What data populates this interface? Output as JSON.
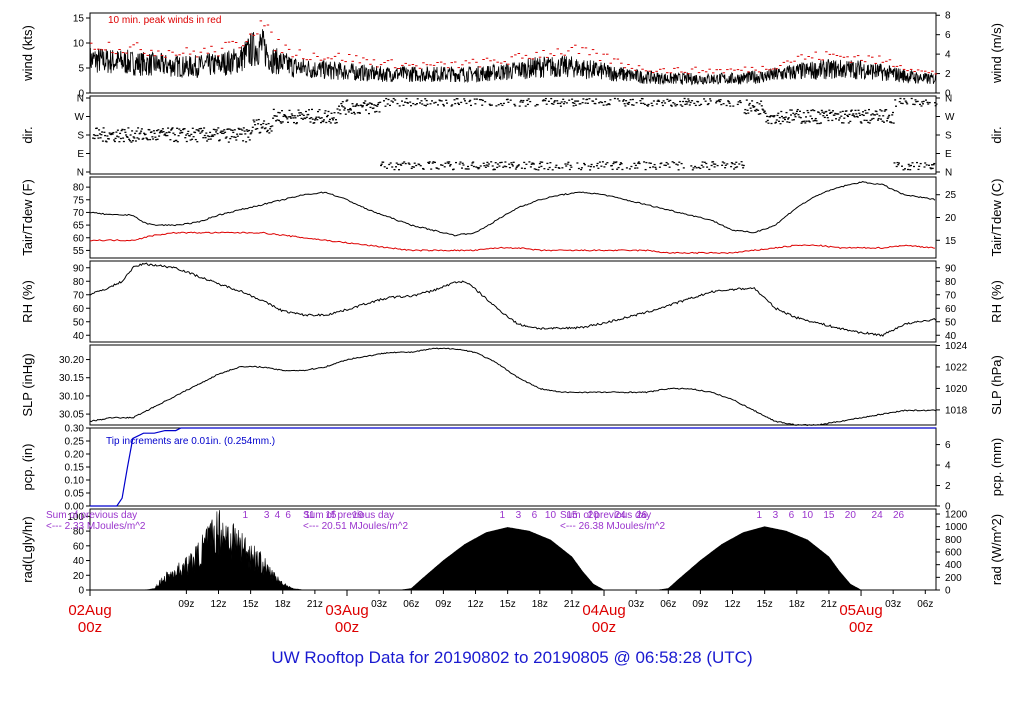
{
  "title": "UW Rooftop Data for 20190802  to  20190805 @ 06:58:28  (UTC)",
  "colors": {
    "primary": "#000000",
    "red": "#dd0000",
    "blue": "#0000cc",
    "purple": "#9933cc",
    "title": "#1a1ad0"
  },
  "x_axis": {
    "range_hours": [
      0,
      79
    ],
    "hour_ticks": [
      {
        "h": 9,
        "label": "09z"
      },
      {
        "h": 12,
        "label": "12z"
      },
      {
        "h": 15,
        "label": "15z"
      },
      {
        "h": 18,
        "label": "18z"
      },
      {
        "h": 21,
        "label": "21z"
      },
      {
        "h": 27,
        "label": "03z"
      },
      {
        "h": 30,
        "label": "06z"
      },
      {
        "h": 33,
        "label": "09z"
      },
      {
        "h": 36,
        "label": "12z"
      },
      {
        "h": 39,
        "label": "15z"
      },
      {
        "h": 42,
        "label": "18z"
      },
      {
        "h": 45,
        "label": "21z"
      },
      {
        "h": 51,
        "label": "03z"
      },
      {
        "h": 54,
        "label": "06z"
      },
      {
        "h": 57,
        "label": "09z"
      },
      {
        "h": 60,
        "label": "12z"
      },
      {
        "h": 63,
        "label": "15z"
      },
      {
        "h": 66,
        "label": "18z"
      },
      {
        "h": 69,
        "label": "21z"
      },
      {
        "h": 75,
        "label": "03z"
      },
      {
        "h": 78,
        "label": "06z"
      }
    ],
    "day_labels": [
      {
        "h": 0,
        "line1": "02Aug",
        "line2": "00z"
      },
      {
        "h": 24,
        "line1": "03Aug",
        "line2": "00z"
      },
      {
        "h": 48,
        "line1": "04Aug",
        "line2": "00z"
      },
      {
        "h": 72,
        "line1": "05Aug",
        "line2": "00z"
      }
    ]
  },
  "panels": {
    "wind": {
      "left_label": "wind (kts)",
      "right_label": "wind (m/s)",
      "left_ticks": [
        "0",
        "5",
        "10",
        "15"
      ],
      "right_ticks": [
        "0",
        "2",
        "4",
        "6",
        "8"
      ],
      "annotation": "10 min. peak winds in red",
      "ylim": [
        0,
        16
      ]
    },
    "dir": {
      "left_label": "dir.",
      "right_label": "dir.",
      "left_ticks": [
        "N",
        "E",
        "S",
        "W",
        "N"
      ],
      "right_ticks": [
        "N",
        "E",
        "S",
        "W",
        "N"
      ]
    },
    "temp": {
      "left_label": "Tair/Tdew (F)",
      "right_label": "Tair/Tdew (C)",
      "left_ticks": [
        "55",
        "60",
        "65",
        "70",
        "75",
        "80"
      ],
      "right_ticks": [
        "15",
        "20",
        "25"
      ],
      "ylim": [
        52,
        84
      ]
    },
    "rh": {
      "left_label": "RH (%)",
      "right_label": "RH (%)",
      "left_ticks": [
        "40",
        "50",
        "60",
        "70",
        "80",
        "90"
      ],
      "right_ticks": [
        "40",
        "50",
        "60",
        "70",
        "80",
        "90"
      ],
      "ylim": [
        35,
        95
      ]
    },
    "slp": {
      "left_label": "SLP (inHg)",
      "right_label": "SLP (hPa)",
      "left_ticks": [
        "30.05",
        "30.10",
        "30.15",
        "30.20"
      ],
      "right_ticks": [
        "1018",
        "1020",
        "1022",
        "1024"
      ],
      "ylim": [
        30.02,
        30.24
      ]
    },
    "pcp": {
      "left_label": "pcp. (in)",
      "right_label": "pcp. (mm)",
      "left_ticks": [
        "0.00",
        "0.05",
        "0.10",
        "0.15",
        "0.20",
        "0.25",
        "0.30"
      ],
      "right_ticks": [
        "0",
        "2",
        "4",
        "6"
      ],
      "annotation": "Tip increments are 0.01in. (0.254mm.)",
      "ylim": [
        0,
        0.3
      ]
    },
    "rad": {
      "left_label": "rad(Lgly/hr)",
      "right_label": "rad (W/m^2)",
      "left_ticks": [
        "0",
        "20",
        "40",
        "60",
        "80",
        "100"
      ],
      "right_ticks": [
        "0",
        "200",
        "400",
        "600",
        "800",
        "1000",
        "1200"
      ],
      "ylim": [
        0,
        110
      ],
      "sums": [
        {
          "h": 0,
          "line1": "Sum of previous day",
          "line2": "<--- 2.33 MJoules/m^2"
        },
        {
          "h": 24,
          "line1": "Sum of previous day",
          "line2": "<--- 20.51 MJoules/m^2"
        },
        {
          "h": 48,
          "line1": "Sum of previous day",
          "line2": "<--- 26.38 MJoules/m^2"
        }
      ],
      "hour_marks": [
        "1",
        "3",
        "4",
        "6",
        "11",
        "15",
        "19",
        "1",
        "3",
        "6",
        "10",
        "15",
        "20",
        "24",
        "26",
        "1",
        "3",
        "6",
        "10",
        "15",
        "20",
        "24",
        "26"
      ]
    }
  },
  "chart_data": [
    {
      "type": "line",
      "title": "10 min. peak winds in red",
      "ylabel": "wind (kts)",
      "ylabel_right": "wind (m/s)",
      "ylim": [
        0,
        16
      ],
      "x_units": "hours since 02Aug 00z",
      "series": [
        {
          "x": [
            0,
            3,
            6,
            9,
            12,
            14,
            15,
            16,
            17,
            19,
            21,
            24,
            27,
            30,
            33,
            36,
            39,
            42,
            45,
            48,
            51,
            54,
            57,
            60,
            63,
            66,
            69,
            72,
            75,
            78,
            79
          ],
          "values": [
            7,
            6.5,
            6,
            5.5,
            6,
            7,
            9,
            10,
            7,
            5.5,
            5,
            4.5,
            4,
            4,
            4,
            4,
            4.5,
            5.5,
            5.5,
            4.5,
            3.5,
            3,
            3,
            3,
            3.5,
            4.5,
            5,
            5,
            4,
            3,
            3
          ]
        },
        {
          "x": [
            0,
            3,
            6,
            9,
            12,
            14,
            15,
            16,
            17,
            19,
            21,
            24,
            27,
            30,
            33,
            36,
            39,
            42,
            45,
            48,
            51,
            54,
            57,
            60,
            63,
            66,
            69,
            72,
            75,
            78,
            79
          ],
          "values": [
            10,
            9,
            8.5,
            8,
            8.5,
            10,
            13,
            14,
            10,
            8,
            7.5,
            7,
            6,
            5.5,
            5.5,
            6,
            6.5,
            8,
            8.5,
            7,
            5,
            4.5,
            4.5,
            4.5,
            5,
            7,
            7.5,
            7,
            6,
            4,
            4
          ]
        }
      ]
    },
    {
      "type": "scatter",
      "ylabel": "dir.",
      "categories": [
        "N",
        "E",
        "S",
        "W",
        "N"
      ],
      "x_units": "hours since 02Aug 00z",
      "x": [
        0,
        2,
        4,
        6,
        8,
        10,
        12,
        14,
        16,
        18,
        20,
        22,
        24,
        26,
        28,
        30,
        32,
        34,
        36,
        38,
        40,
        42,
        44,
        46,
        48,
        50,
        52,
        54,
        56,
        58,
        60,
        62,
        64,
        66,
        68,
        70,
        72,
        74,
        76,
        78
      ],
      "values": [
        "S",
        "S",
        "S",
        "S",
        "S",
        "S",
        "S",
        "S",
        "SW",
        "W",
        "W",
        "W",
        "NW",
        "NW",
        "N",
        "N",
        "N",
        "N",
        "N",
        "N",
        "N",
        "N",
        "N",
        "N",
        "N",
        "N",
        "N",
        "N",
        "N",
        "N",
        "N",
        "NW",
        "W",
        "W",
        "W",
        "W",
        "W",
        "W",
        "N",
        "N"
      ]
    },
    {
      "type": "line",
      "ylabel": "Tair/Tdew (F)",
      "ylabel_right": "Tair/Tdew (C)",
      "ylim": [
        52,
        84
      ],
      "x_units": "hours since 02Aug 00z",
      "series": [
        {
          "x": [
            0,
            2,
            4,
            5,
            6,
            8,
            10,
            12,
            14,
            16,
            18,
            20,
            22,
            24,
            26,
            28,
            30,
            32,
            34,
            36,
            38,
            40,
            42,
            44,
            46,
            48,
            50,
            52,
            54,
            56,
            58,
            60,
            62,
            64,
            66,
            68,
            70,
            72,
            74,
            76,
            79
          ],
          "values": [
            70,
            69,
            69,
            66,
            65,
            65,
            66,
            69,
            71,
            73,
            75,
            77,
            78,
            75,
            71,
            68,
            65,
            63,
            61,
            62,
            67,
            72,
            75,
            77,
            78,
            77,
            75,
            73,
            71,
            69,
            67,
            63,
            62,
            65,
            72,
            77,
            80,
            82,
            81,
            77,
            75
          ]
        },
        {
          "x": [
            0,
            2,
            4,
            5,
            6,
            8,
            10,
            12,
            14,
            16,
            18,
            20,
            22,
            24,
            26,
            28,
            30,
            32,
            34,
            36,
            38,
            40,
            42,
            44,
            46,
            48,
            50,
            52,
            54,
            56,
            58,
            60,
            62,
            64,
            66,
            68,
            70,
            72,
            74,
            76,
            79
          ],
          "values": [
            59,
            59,
            59,
            60,
            61,
            62,
            62,
            62,
            62,
            62,
            61,
            60,
            59,
            58,
            57,
            56,
            55,
            55,
            55,
            55,
            56,
            56,
            55,
            55,
            55,
            55,
            55,
            55,
            54,
            54,
            54,
            54,
            55,
            56,
            57,
            57,
            56,
            56,
            56,
            57,
            56
          ]
        }
      ]
    },
    {
      "type": "line",
      "ylabel": "RH (%)",
      "ylabel_right": "RH (%)",
      "ylim": [
        35,
        95
      ],
      "x_units": "hours since 02Aug 00z",
      "series": [
        {
          "x": [
            0,
            2,
            3,
            4,
            5,
            6,
            8,
            10,
            12,
            14,
            16,
            18,
            20,
            22,
            24,
            26,
            28,
            30,
            32,
            34,
            35,
            36,
            38,
            40,
            42,
            44,
            46,
            48,
            50,
            52,
            54,
            56,
            58,
            60,
            62,
            64,
            66,
            68,
            70,
            72,
            74,
            76,
            79
          ],
          "values": [
            70,
            76,
            80,
            90,
            93,
            92,
            90,
            84,
            78,
            73,
            66,
            58,
            55,
            55,
            59,
            64,
            68,
            69,
            73,
            79,
            80,
            74,
            60,
            48,
            45,
            45,
            46,
            49,
            53,
            57,
            62,
            67,
            72,
            74,
            75,
            60,
            53,
            49,
            45,
            42,
            40,
            48,
            52
          ]
        }
      ]
    },
    {
      "type": "line",
      "ylabel": "SLP (inHg)",
      "ylabel_right": "SLP (hPa)",
      "ylim": [
        30.02,
        30.24
      ],
      "x_units": "hours since 02Aug 00z",
      "series": [
        {
          "x": [
            0,
            2,
            4,
            6,
            8,
            10,
            12,
            14,
            16,
            18,
            20,
            22,
            24,
            26,
            28,
            30,
            32,
            34,
            36,
            38,
            40,
            42,
            44,
            46,
            48,
            50,
            52,
            54,
            56,
            58,
            60,
            62,
            64,
            66,
            68,
            70,
            72,
            74,
            76,
            79
          ],
          "values": [
            30.03,
            30.04,
            30.04,
            30.07,
            30.1,
            30.13,
            30.16,
            30.18,
            30.18,
            30.17,
            30.17,
            30.18,
            30.2,
            30.21,
            30.22,
            30.22,
            30.23,
            30.23,
            30.22,
            30.19,
            30.15,
            30.12,
            30.11,
            30.11,
            30.11,
            30.11,
            30.11,
            30.12,
            30.12,
            30.11,
            30.09,
            30.06,
            30.03,
            30.02,
            30.02,
            30.03,
            30.04,
            30.05,
            30.06,
            30.06
          ]
        }
      ]
    },
    {
      "type": "line",
      "ylabel": "pcp. (in)",
      "ylabel_right": "pcp. (mm)",
      "ylim": [
        0,
        0.3
      ],
      "x_units": "hours since 02Aug 00z",
      "series": [
        {
          "x": [
            0,
            2.5,
            3,
            3.5,
            4,
            4.5,
            5,
            5.5,
            6,
            7,
            8,
            8.5,
            9,
            79
          ],
          "values": [
            0,
            0,
            0.03,
            0.15,
            0.26,
            0.27,
            0.28,
            0.28,
            0.28,
            0.29,
            0.29,
            0.3,
            0.3,
            0.3
          ]
        }
      ]
    },
    {
      "type": "area",
      "ylabel": "rad(Lgly/hr)",
      "ylabel_right": "rad (W/m^2)",
      "ylim": [
        0,
        110
      ],
      "x_units": "hours since 02Aug 00z",
      "series": [
        {
          "x": [
            0,
            5,
            6,
            7,
            8,
            9,
            10,
            11,
            12,
            13,
            14,
            15,
            16,
            17,
            18,
            19,
            20,
            21,
            22,
            23,
            24,
            29,
            30,
            31,
            33,
            35,
            37,
            39,
            41,
            43,
            45,
            46,
            47,
            48,
            53,
            54,
            55,
            57,
            59,
            61,
            63,
            65,
            67,
            69,
            70,
            71,
            72,
            79
          ],
          "values": [
            0,
            0,
            2,
            20,
            30,
            40,
            55,
            80,
            100,
            90,
            75,
            60,
            45,
            25,
            10,
            2,
            0,
            0,
            0,
            0,
            0,
            0,
            2,
            15,
            40,
            62,
            78,
            85,
            80,
            68,
            45,
            25,
            8,
            0,
            0,
            2,
            15,
            40,
            62,
            78,
            86,
            80,
            68,
            45,
            25,
            8,
            0,
            0
          ]
        }
      ]
    }
  ]
}
